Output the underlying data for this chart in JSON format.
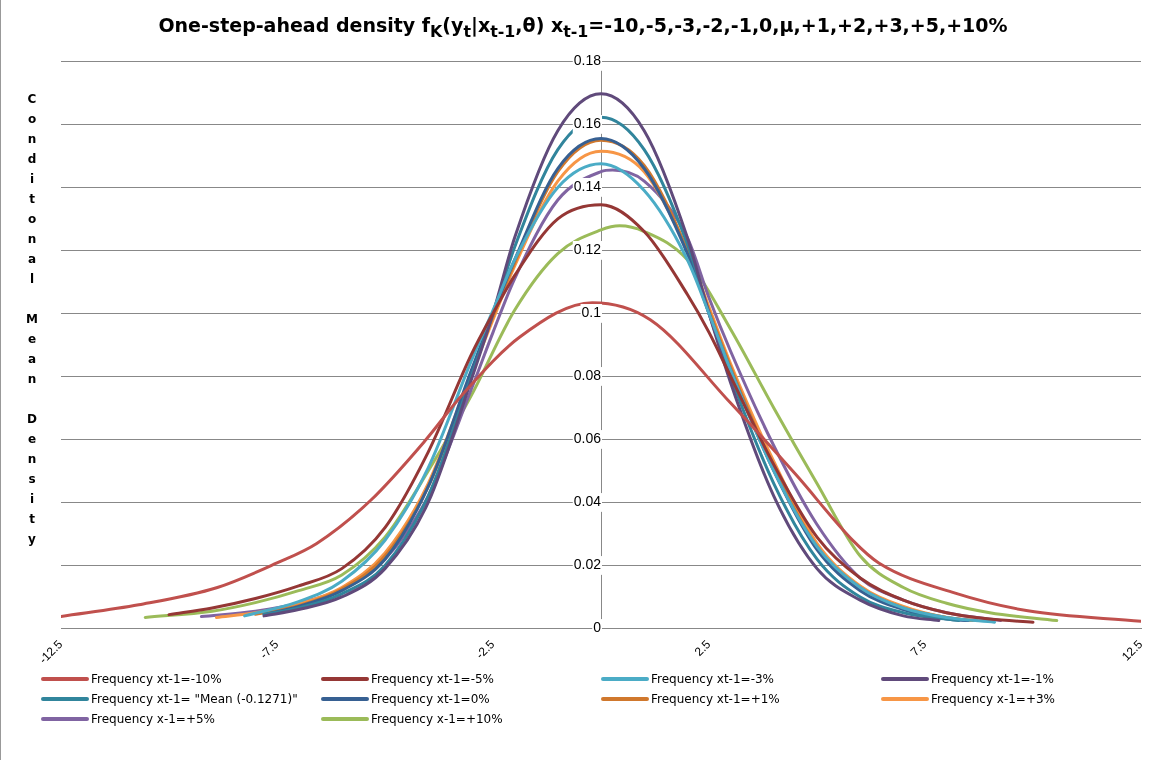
{
  "chart_data": {
    "type": "line",
    "title": "One-step-ahead  density f$_{K}$(y$_{t}$|x$_{t-1}$,θ) x$_{t-1}$=-10,-5,-3,-2,-1,0,μ,+1,+2,+3,+5,+10%",
    "ylabel": "Conditonal Mean Density",
    "xlim": [
      -12.5,
      12.5
    ],
    "xticks": [
      -12.5,
      -7.5,
      -2.5,
      2.5,
      7.5,
      12.5
    ],
    "ylim": [
      0,
      0.18
    ],
    "yticks": [
      0,
      0.02,
      0.04,
      0.06,
      0.08,
      0.1,
      0.12,
      0.14,
      0.16,
      0.18
    ],
    "grid": "y",
    "legend": "bottom",
    "marker": "none",
    "line_style": "solid",
    "series": [
      {
        "name": "Frequency xt-1=-10%",
        "color": "#c0504d",
        "x": [
          -12.5,
          -10.7,
          -8.88,
          -7.5,
          -6.58,
          -5.33,
          -4.06,
          -3.23,
          -1.88,
          -0.2,
          1.14,
          2.99,
          4.5,
          5.84,
          6.43,
          8.2,
          9.88,
          12.5
        ],
        "values": [
          0.0038,
          0.0075,
          0.013,
          0.0208,
          0.027,
          0.0407,
          0.0598,
          0.0739,
          0.0925,
          0.1034,
          0.098,
          0.0717,
          0.049,
          0.0278,
          0.0208,
          0.0112,
          0.0056,
          0.0023
        ]
      },
      {
        "name": "Frequency xt-1=-5%",
        "color": "#953735",
        "x": [
          -10,
          -9,
          -8,
          -7,
          -6,
          -5,
          -4,
          -3,
          -2.5,
          -2,
          -1,
          0,
          1,
          2,
          2.5,
          3,
          4,
          5,
          6,
          7,
          8,
          9,
          10
        ],
        "values": [
          0.0044,
          0.0065,
          0.0095,
          0.0135,
          0.019,
          0.032,
          0.056,
          0.087,
          0.1,
          0.112,
          0.13,
          0.1345,
          0.126,
          0.106,
          0.094,
          0.08,
          0.052,
          0.029,
          0.016,
          0.009,
          0.005,
          0.003,
          0.002
        ]
      },
      {
        "name": "Frequency xt-1=-3%",
        "color": "#4bacc6",
        "x": [
          -8.25,
          -7,
          -6,
          -5,
          -4,
          -3,
          -2.5,
          -2,
          -1,
          0,
          1,
          2,
          2.5,
          3,
          4,
          5,
          6,
          7,
          8,
          9.11
        ],
        "values": [
          0.004,
          0.0085,
          0.015,
          0.028,
          0.051,
          0.085,
          0.101,
          0.117,
          0.14,
          0.1475,
          0.139,
          0.117,
          0.1,
          0.082,
          0.05,
          0.026,
          0.013,
          0.0065,
          0.0035,
          0.002
        ]
      },
      {
        "name": "Frequency xt-1=-1%",
        "color": "#604a7b",
        "x": [
          -7.8,
          -7,
          -6,
          -5,
          -4,
          -3,
          -2.5,
          -2,
          -1,
          0,
          1,
          2,
          2.5,
          3,
          4,
          5,
          6,
          7,
          7.82
        ],
        "values": [
          0.004,
          0.006,
          0.01,
          0.019,
          0.04,
          0.079,
          0.1,
          0.124,
          0.158,
          0.1697,
          0.158,
          0.124,
          0.1,
          0.078,
          0.042,
          0.019,
          0.009,
          0.004,
          0.0025
        ]
      },
      {
        "name": "Frequency xt-1= \"Mean (-0.1271)\"",
        "color": "#31859c",
        "x": [
          -7.8,
          -7,
          -6,
          -5,
          -4,
          -3,
          -2.5,
          -2,
          -1,
          0,
          1,
          2,
          2.5,
          3,
          4,
          5,
          6,
          7,
          8,
          8.28
        ],
        "values": [
          0.0045,
          0.0065,
          0.011,
          0.02,
          0.042,
          0.08,
          0.1,
          0.121,
          0.152,
          0.1623,
          0.152,
          0.122,
          0.1,
          0.08,
          0.046,
          0.022,
          0.01,
          0.005,
          0.003,
          0.0025
        ]
      },
      {
        "name": "Frequency xt-1=0%",
        "color": "#376092",
        "x": [
          -7.8,
          -7,
          -6,
          -5,
          -4,
          -3,
          -2.5,
          -2,
          -1,
          0,
          1,
          2,
          2.5,
          3,
          4,
          5,
          6,
          7,
          8,
          8.5
        ],
        "values": [
          0.0045,
          0.007,
          0.012,
          0.022,
          0.045,
          0.082,
          0.1,
          0.117,
          0.146,
          0.1555,
          0.146,
          0.119,
          0.1,
          0.082,
          0.05,
          0.025,
          0.012,
          0.006,
          0.003,
          0.0025
        ]
      },
      {
        "name": "Frequency xt-1=+1%",
        "color": "#d0782d",
        "x": [
          -8,
          -7,
          -6,
          -5,
          -4,
          -3,
          -2.5,
          -2,
          -1,
          0,
          1,
          2,
          2.5,
          3,
          4,
          5,
          6,
          7,
          8,
          8.6
        ],
        "values": [
          0.0045,
          0.0072,
          0.0125,
          0.023,
          0.045,
          0.081,
          0.099,
          0.116,
          0.145,
          0.155,
          0.147,
          0.12,
          0.101,
          0.083,
          0.051,
          0.026,
          0.013,
          0.0065,
          0.0035,
          0.0025
        ]
      },
      {
        "name": "Frequency x-1=+3%",
        "color": "#f79646",
        "x": [
          -8.9,
          -8,
          -7,
          -6,
          -5,
          -4,
          -3,
          -2.5,
          -2,
          -1,
          0,
          1,
          2,
          2.5,
          3,
          4,
          5,
          6,
          7,
          8,
          8.7
        ],
        "values": [
          0.0035,
          0.005,
          0.0078,
          0.013,
          0.024,
          0.046,
          0.081,
          0.098,
          0.115,
          0.142,
          0.1515,
          0.145,
          0.12,
          0.102,
          0.084,
          0.053,
          0.027,
          0.0135,
          0.007,
          0.0035,
          0.0025
        ]
      },
      {
        "name": "Frequency x-1=+5%",
        "color": "#8064a2",
        "x": [
          -9.25,
          -8,
          -7,
          -6,
          -5,
          -4,
          -3,
          -2.5,
          -2,
          -1,
          0,
          0.27,
          1,
          2,
          2.5,
          3,
          4,
          5,
          6,
          7,
          8,
          9.25
        ],
        "values": [
          0.0038,
          0.0055,
          0.008,
          0.0125,
          0.022,
          0.042,
          0.076,
          0.094,
          0.111,
          0.136,
          0.145,
          0.1455,
          0.142,
          0.124,
          0.105,
          0.088,
          0.058,
          0.033,
          0.016,
          0.009,
          0.005,
          0.0025
        ]
      },
      {
        "name": "Frequency x-1=+10%",
        "color": "#9bbb59",
        "x": [
          -10.55,
          -9,
          -8,
          -7,
          -6,
          -5,
          -4,
          -3,
          -2,
          -1,
          0,
          0.43,
          1,
          2,
          3,
          4,
          5,
          6,
          7,
          8,
          9,
          10.55
        ],
        "values": [
          0.0035,
          0.0055,
          0.0082,
          0.012,
          0.017,
          0.029,
          0.05,
          0.074,
          0.101,
          0.119,
          0.1265,
          0.1278,
          0.126,
          0.117,
          0.095,
          0.07,
          0.046,
          0.023,
          0.013,
          0.008,
          0.005,
          0.0025
        ]
      }
    ]
  }
}
